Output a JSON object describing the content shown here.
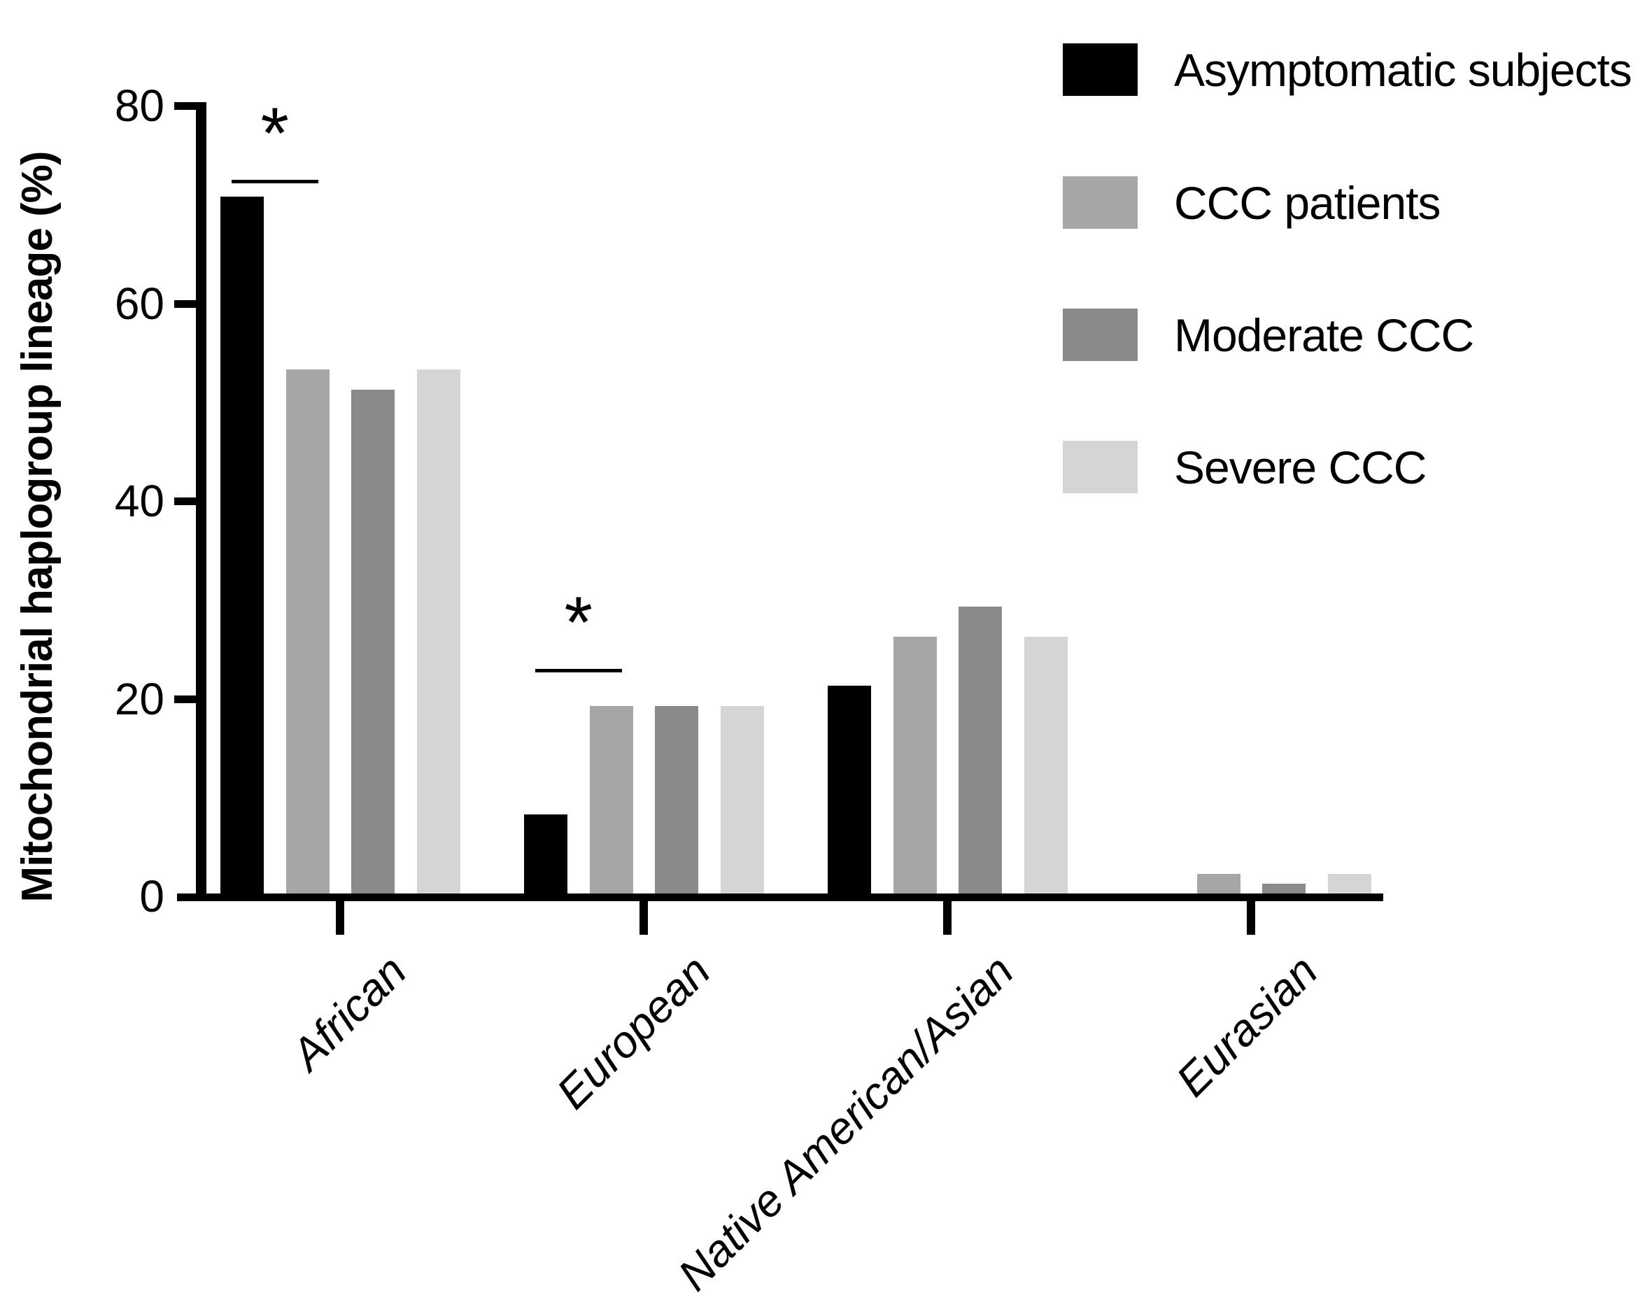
{
  "chart_data": {
    "type": "bar",
    "title": "",
    "ylabel": "Mitochondrial haplogroup lineage (%)",
    "xlabel": "",
    "ylim": [
      0,
      80
    ],
    "yticks": [
      0,
      20,
      40,
      60,
      80
    ],
    "grid": false,
    "legend_position": "top-right",
    "categories": [
      "African",
      "European",
      "Native American/Asian",
      "Eurasian"
    ],
    "series": [
      {
        "name": "Asymptomatic subjects",
        "color": "#000000",
        "values": [
          70.5,
          8,
          21,
          0
        ]
      },
      {
        "name": "CCC patients",
        "color": "#a6a6a6",
        "values": [
          53,
          19,
          26,
          2
        ]
      },
      {
        "name": "Moderate CCC",
        "color": "#8a8a8a",
        "values": [
          51,
          19,
          29,
          1
        ]
      },
      {
        "name": "Severe CCC",
        "color": "#d5d5d5",
        "values": [
          53,
          19,
          26,
          2
        ]
      }
    ],
    "annotations": [
      {
        "label": "*",
        "category_index": 0,
        "from_series": 0,
        "to_series": 1,
        "y_value": 72.5
      },
      {
        "label": "*",
        "category_index": 1,
        "from_series": 0,
        "to_series": 1,
        "y_value": 23
      }
    ]
  }
}
